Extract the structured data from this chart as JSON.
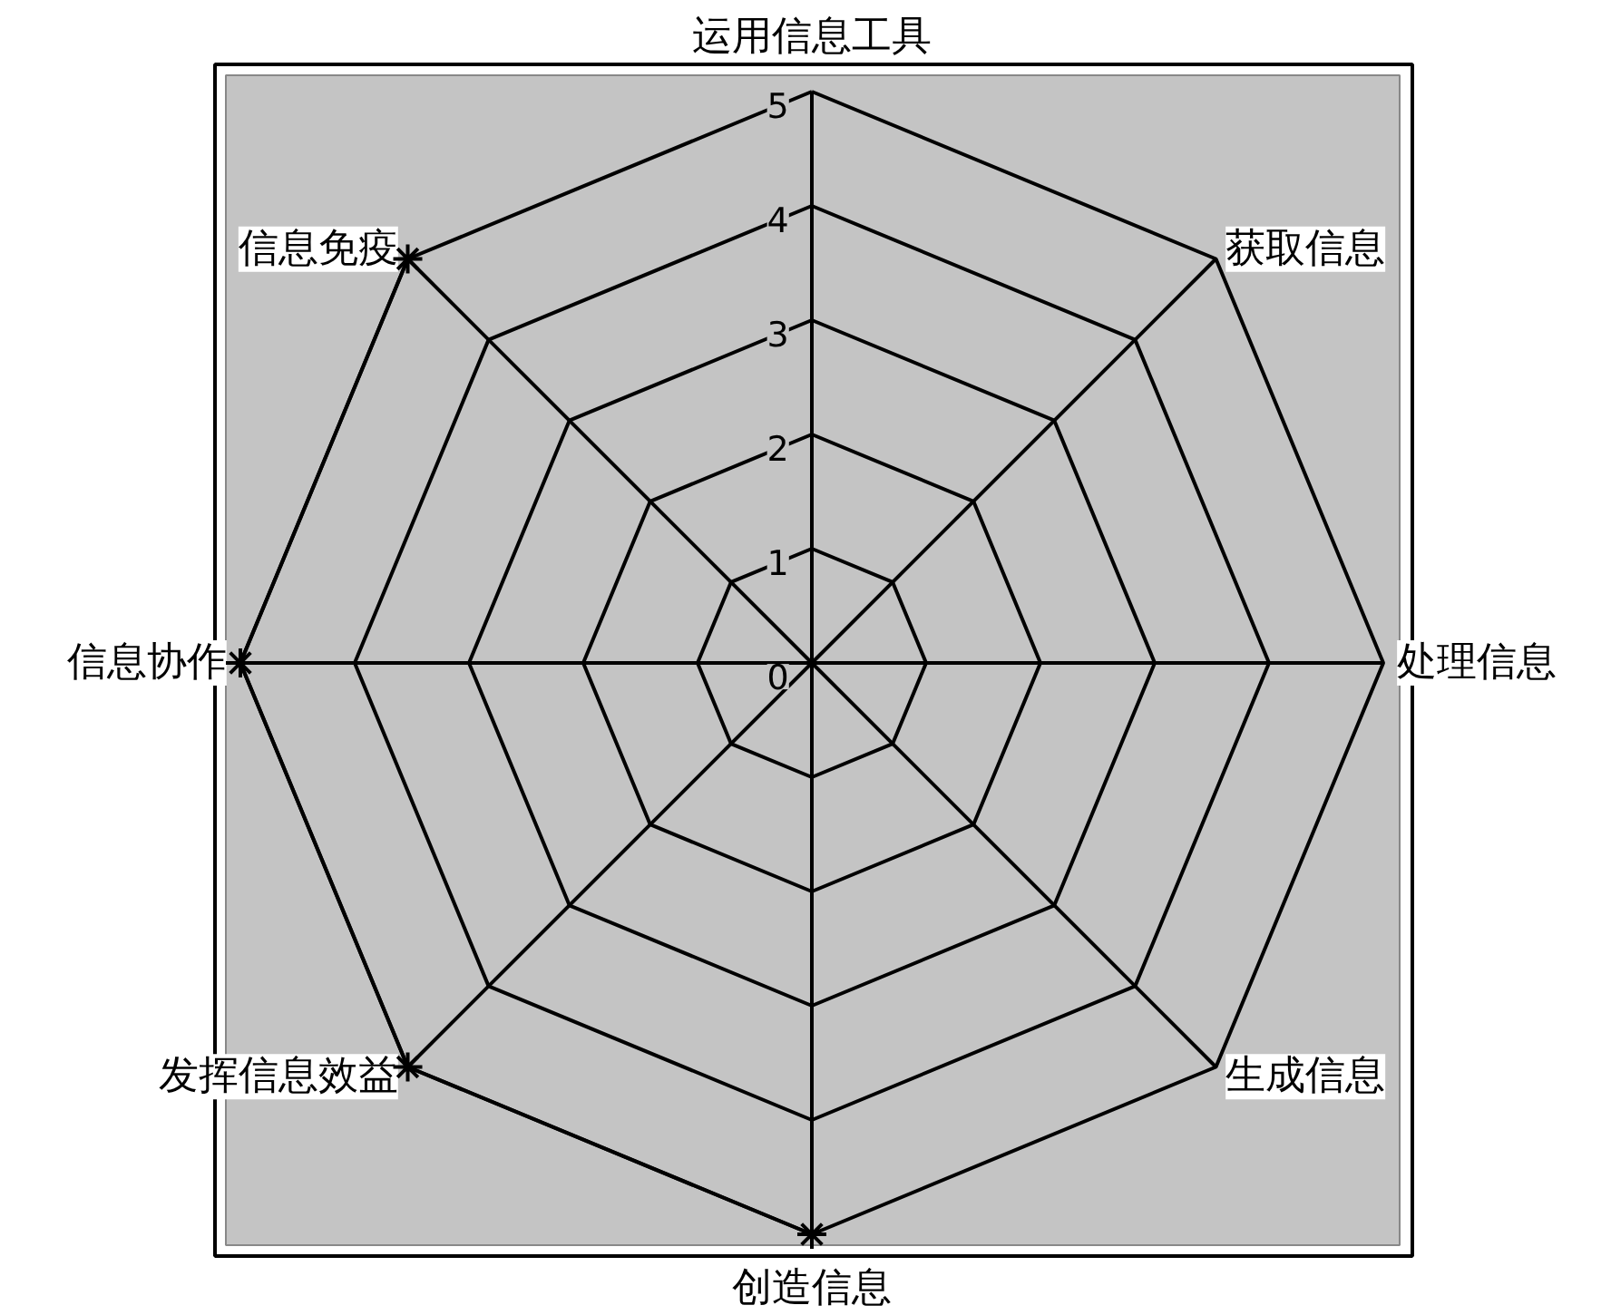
{
  "chart_data": {
    "type": "radar",
    "categories": [
      "运用信息工具",
      "获取信息",
      "处理信息",
      "生成信息",
      "创造信息",
      "发挥信息效益",
      "信息协作",
      "信息免疫"
    ],
    "series": [
      {
        "color": "#000000",
        "values": [
          null,
          null,
          null,
          null,
          5,
          5,
          5,
          5
        ]
      }
    ],
    "ylim": [
      0,
      5
    ],
    "yticks": [
      0,
      1,
      2,
      3,
      4,
      5
    ],
    "grid": true,
    "marker": "star"
  }
}
